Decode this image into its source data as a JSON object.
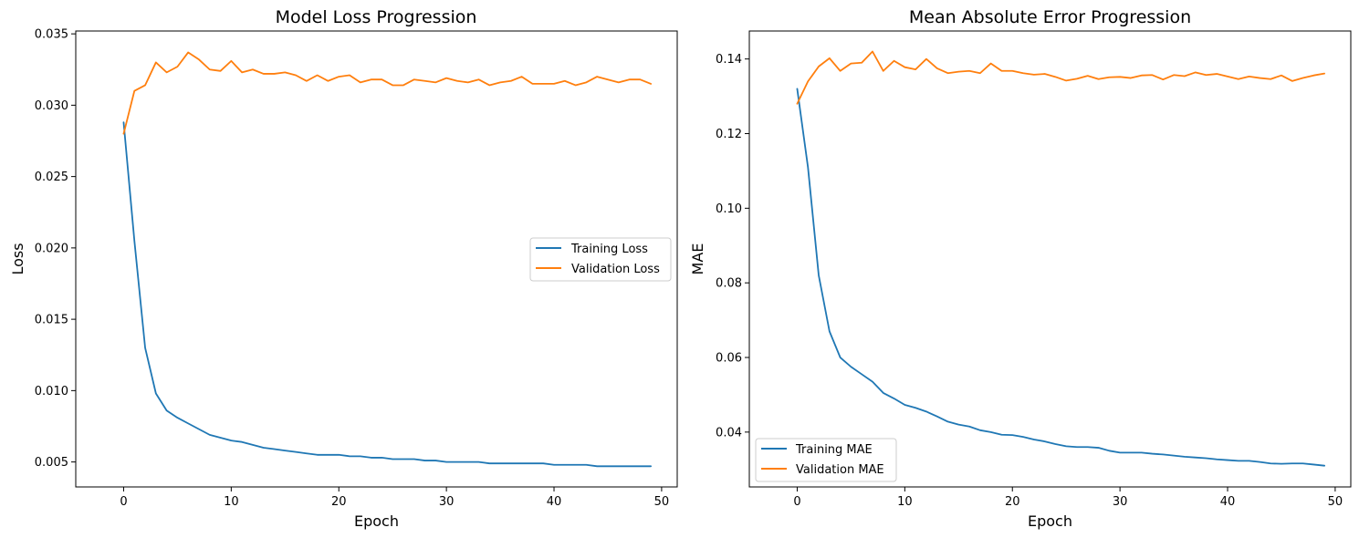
{
  "chart_data": [
    {
      "type": "line",
      "title": "Model Loss Progression",
      "xlabel": "Epoch",
      "ylabel": "Loss",
      "xlim": [
        -4.45,
        51.45
      ],
      "ylim": [
        0.00325,
        0.0352
      ],
      "xticks": [
        0,
        10,
        20,
        30,
        40,
        50
      ],
      "xtick_labels": [
        "0",
        "10",
        "20",
        "30",
        "40",
        "50"
      ],
      "yticks": [
        0.005,
        0.01,
        0.015,
        0.02,
        0.025,
        0.03,
        0.035
      ],
      "ytick_labels": [
        "0.005",
        "0.010",
        "0.015",
        "0.020",
        "0.025",
        "0.030",
        "0.035"
      ],
      "grid": false,
      "legend": "center-right",
      "x": [
        0,
        1,
        2,
        3,
        4,
        5,
        6,
        7,
        8,
        9,
        10,
        11,
        12,
        13,
        14,
        15,
        16,
        17,
        18,
        19,
        20,
        21,
        22,
        23,
        24,
        25,
        26,
        27,
        28,
        29,
        30,
        31,
        32,
        33,
        34,
        35,
        36,
        37,
        38,
        39,
        40,
        41,
        42,
        43,
        44,
        45,
        46,
        47,
        48,
        49
      ],
      "series": [
        {
          "name": "Training Loss",
          "color": "#1f77b4",
          "values": [
            0.0288,
            0.0205,
            0.013,
            0.0098,
            0.0086,
            0.0081,
            0.0077,
            0.0073,
            0.0069,
            0.0067,
            0.0065,
            0.0064,
            0.0062,
            0.006,
            0.0059,
            0.0058,
            0.0057,
            0.0056,
            0.0055,
            0.0055,
            0.0055,
            0.0054,
            0.0054,
            0.0053,
            0.0053,
            0.0052,
            0.0052,
            0.0052,
            0.0051,
            0.0051,
            0.005,
            0.005,
            0.005,
            0.005,
            0.0049,
            0.0049,
            0.0049,
            0.0049,
            0.0049,
            0.0049,
            0.0048,
            0.0048,
            0.0048,
            0.0048,
            0.0047,
            0.0047,
            0.0047,
            0.0047,
            0.0047,
            0.0047
          ]
        },
        {
          "name": "Validation Loss",
          "color": "#ff7f0e",
          "values": [
            0.028,
            0.031,
            0.0314,
            0.033,
            0.0323,
            0.0327,
            0.0337,
            0.0332,
            0.0325,
            0.0324,
            0.0331,
            0.0323,
            0.0325,
            0.0322,
            0.0322,
            0.0323,
            0.0321,
            0.0317,
            0.0321,
            0.0317,
            0.032,
            0.0321,
            0.0316,
            0.0318,
            0.0318,
            0.0314,
            0.0314,
            0.0318,
            0.0317,
            0.0316,
            0.0319,
            0.0317,
            0.0316,
            0.0318,
            0.0314,
            0.0316,
            0.0317,
            0.032,
            0.0315,
            0.0315,
            0.0315,
            0.0317,
            0.0314,
            0.0316,
            0.032,
            0.0318,
            0.0316,
            0.0318,
            0.0318,
            0.0315
          ]
        }
      ]
    },
    {
      "type": "line",
      "title": "Mean Absolute Error Progression",
      "xlabel": "Epoch",
      "ylabel": "MAE",
      "xlim": [
        -4.45,
        51.45
      ],
      "ylim": [
        0.0253,
        0.1475
      ],
      "xticks": [
        0,
        10,
        20,
        30,
        40,
        50
      ],
      "xtick_labels": [
        "0",
        "10",
        "20",
        "30",
        "40",
        "50"
      ],
      "yticks": [
        0.04,
        0.06,
        0.08,
        0.1,
        0.12,
        0.14
      ],
      "ytick_labels": [
        "0.04",
        "0.06",
        "0.08",
        "0.10",
        "0.12",
        "0.14"
      ],
      "grid": false,
      "legend": "lower-left",
      "x": [
        0,
        1,
        2,
        3,
        4,
        5,
        6,
        7,
        8,
        9,
        10,
        11,
        12,
        13,
        14,
        15,
        16,
        17,
        18,
        19,
        20,
        21,
        22,
        23,
        24,
        25,
        26,
        27,
        28,
        29,
        30,
        31,
        32,
        33,
        34,
        35,
        36,
        37,
        38,
        39,
        40,
        41,
        42,
        43,
        44,
        45,
        46,
        47,
        48,
        49
      ],
      "series": [
        {
          "name": "Training MAE",
          "color": "#1f77b4",
          "values": [
            0.132,
            0.111,
            0.082,
            0.067,
            0.06,
            0.0575,
            0.0555,
            0.0535,
            0.0505,
            0.049,
            0.0473,
            0.0465,
            0.0455,
            0.0442,
            0.0428,
            0.042,
            0.0415,
            0.0405,
            0.04,
            0.0393,
            0.0392,
            0.0387,
            0.038,
            0.0375,
            0.0368,
            0.0362,
            0.036,
            0.036,
            0.0358,
            0.035,
            0.0345,
            0.0345,
            0.0345,
            0.0342,
            0.034,
            0.0337,
            0.0334,
            0.0332,
            0.033,
            0.0327,
            0.0325,
            0.0323,
            0.0323,
            0.032,
            0.0316,
            0.0315,
            0.0316,
            0.0316,
            0.0313,
            0.031
          ]
        },
        {
          "name": "Validation MAE",
          "color": "#ff7f0e",
          "values": [
            0.128,
            0.134,
            0.138,
            0.1402,
            0.1368,
            0.1388,
            0.139,
            0.142,
            0.1368,
            0.1395,
            0.1378,
            0.1372,
            0.14,
            0.1375,
            0.1362,
            0.1366,
            0.1368,
            0.1362,
            0.1388,
            0.1368,
            0.1368,
            0.1362,
            0.1358,
            0.136,
            0.1352,
            0.1342,
            0.1347,
            0.1355,
            0.1346,
            0.1351,
            0.1352,
            0.1349,
            0.1356,
            0.1357,
            0.1345,
            0.1357,
            0.1354,
            0.1364,
            0.1357,
            0.136,
            0.1353,
            0.1346,
            0.1353,
            0.1349,
            0.1346,
            0.1356,
            0.1341,
            0.1349,
            0.1356,
            0.1361
          ]
        }
      ]
    }
  ]
}
